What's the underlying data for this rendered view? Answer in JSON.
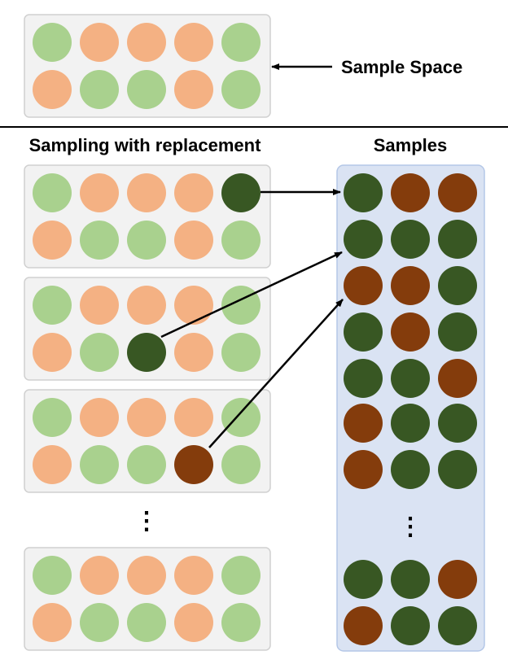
{
  "labels": {
    "sample_space": "Sample Space",
    "sampling_with_replacement": "Sampling with replacement",
    "samples": "Samples",
    "ellipsis": "⋮"
  },
  "colors": {
    "g": "#a9d18e",
    "o": "#f4b183",
    "G": "#385723",
    "O": "#843c0c",
    "box_fill": "#f2f2f2",
    "box_stroke": "#d0d0d0",
    "samples_fill": "#dae3f3",
    "samples_stroke": "#b4c7e7",
    "line": "#000000"
  },
  "sample_space": {
    "rows": [
      [
        "g",
        "o",
        "o",
        "o",
        "g"
      ],
      [
        "o",
        "g",
        "g",
        "o",
        "g"
      ]
    ]
  },
  "draw_boxes": [
    {
      "rows": [
        [
          "g",
          "o",
          "o",
          "o",
          "G"
        ],
        [
          "o",
          "g",
          "g",
          "o",
          "g"
        ]
      ]
    },
    {
      "rows": [
        [
          "g",
          "o",
          "o",
          "o",
          "g"
        ],
        [
          "o",
          "g",
          "G",
          "o",
          "g"
        ]
      ]
    },
    {
      "rows": [
        [
          "g",
          "o",
          "o",
          "o",
          "g"
        ],
        [
          "o",
          "g",
          "g",
          "O",
          "g"
        ]
      ]
    },
    {
      "rows": [
        [
          "g",
          "o",
          "o",
          "o",
          "g"
        ],
        [
          "o",
          "g",
          "g",
          "o",
          "g"
        ]
      ]
    }
  ],
  "samples": {
    "rows": [
      [
        "G",
        "O",
        "O"
      ],
      [
        "G",
        "G",
        "G"
      ],
      [
        "O",
        "O",
        "G"
      ],
      [
        "G",
        "O",
        "G"
      ],
      [
        "G",
        "G",
        "O"
      ],
      [
        "O",
        "G",
        "G"
      ],
      [
        "O",
        "G",
        "G"
      ],
      [
        "G",
        "G",
        "O"
      ],
      [
        "O",
        "G",
        "G"
      ]
    ]
  }
}
